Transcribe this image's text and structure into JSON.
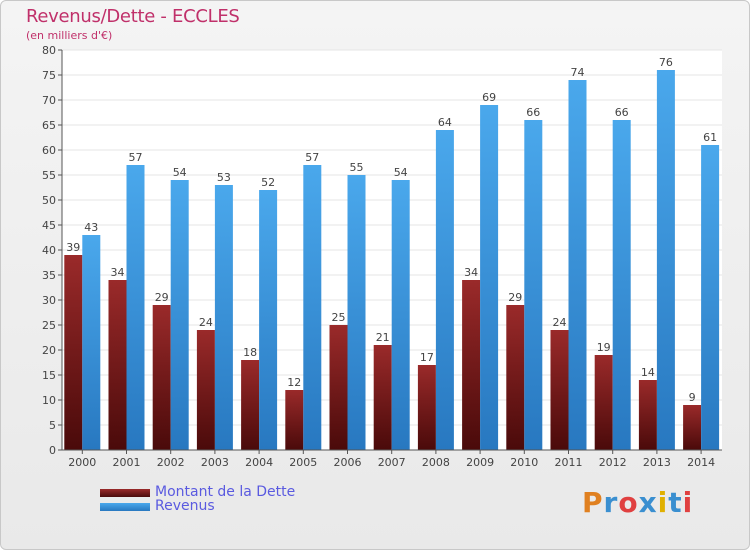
{
  "header": {
    "title": "Revenus/Dette - ECCLES",
    "subtitle": "(en milliers d'€)"
  },
  "legend": {
    "items": [
      {
        "label": "Montant de la Dette",
        "color": "#7a1a1a"
      },
      {
        "label": "Revenus",
        "color": "#3a95dc"
      }
    ]
  },
  "logo": {
    "text": "Proxiti",
    "colors": [
      "#e08020",
      "#3a8fd0",
      "#e04040",
      "#3a8fd0",
      "#e0b000",
      "#3a8fd0",
      "#e04040"
    ]
  },
  "chart_data": {
    "type": "bar",
    "title": "Revenus/Dette - ECCLES",
    "subtitle": "(en milliers d'€)",
    "categories": [
      "2000",
      "2001",
      "2002",
      "2003",
      "2004",
      "2005",
      "2006",
      "2007",
      "2008",
      "2009",
      "2010",
      "2011",
      "2012",
      "2013",
      "2014"
    ],
    "series": [
      {
        "name": "Montant de la Dette",
        "color": "#7a1a1a",
        "values": [
          39,
          34,
          29,
          24,
          18,
          12,
          25,
          21,
          17,
          34,
          29,
          24,
          19,
          14,
          9
        ]
      },
      {
        "name": "Revenus",
        "color": "#3a95dc",
        "values": [
          43,
          57,
          54,
          53,
          52,
          57,
          55,
          54,
          64,
          69,
          66,
          74,
          66,
          76,
          61
        ]
      }
    ],
    "ylim": [
      0,
      80
    ],
    "yticks": [
      0,
      5,
      10,
      15,
      20,
      25,
      30,
      35,
      40,
      45,
      50,
      55,
      60,
      65,
      70,
      75,
      80
    ],
    "grid": true,
    "legend_position": "bottom-left"
  }
}
